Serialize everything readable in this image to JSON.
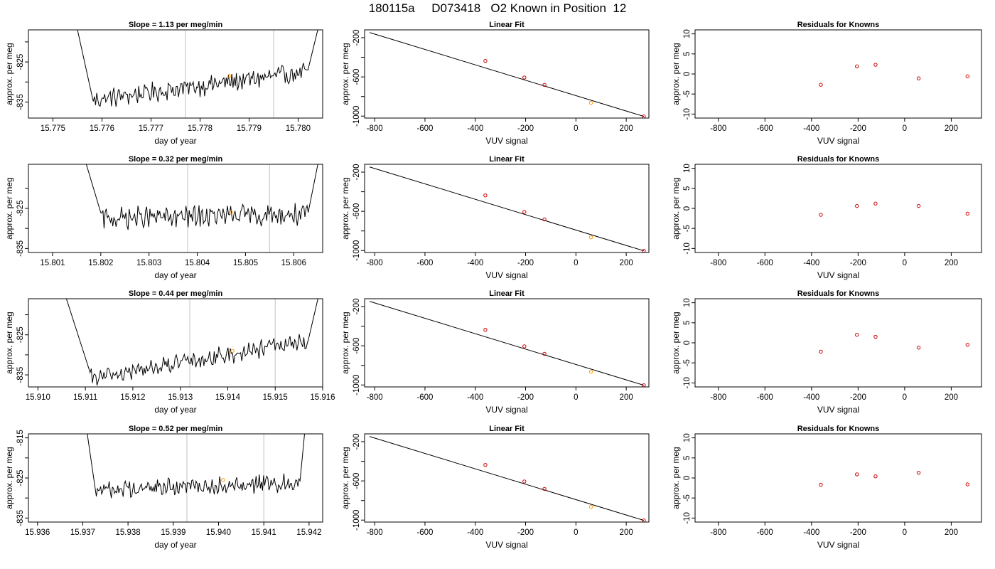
{
  "title": "180115a     D073418   O2 Known in Position  12",
  "colors": {
    "trace": "#000000",
    "vline": "#cccccc",
    "highlight": "#ff9900",
    "residual": "#cc0000",
    "frame": "#000000"
  },
  "chart_data": [
    {
      "type": "line",
      "title": "Slope =  1.13  per meg/min",
      "xlabel": "day of year",
      "ylabel": "approx. per meg",
      "xlim": [
        15.7745,
        15.7805
      ],
      "ylim": [
        -839,
        -817
      ],
      "xticks": [
        15.775,
        15.776,
        15.777,
        15.778,
        15.779,
        15.78
      ],
      "xtick_labels": [
        "15.775",
        "15.776",
        "15.777",
        "15.778",
        "15.779",
        "15.780"
      ],
      "yticks": [
        -835,
        -830,
        -825,
        -820
      ],
      "ytick_labels": [
        "-835",
        "",
        "-825",
        ""
      ],
      "start": 15.7755,
      "end": 15.7804,
      "left_top": -817,
      "right_top": -817,
      "drop_end": 15.7758,
      "rise_start": 15.7802,
      "base_start": -834.5,
      "base_end": -827.5,
      "noise": 2.0,
      "vlines": [
        15.7777,
        15.7795
      ],
      "marker": {
        "x": 15.7786,
        "y": -828.5
      }
    },
    {
      "type": "scatter",
      "title": "Linear Fit",
      "xlabel": "VUV signal",
      "ylabel": "approx. per meg",
      "xlim": [
        -840,
        290
      ],
      "ylim": [
        -1020,
        -120
      ],
      "xticks": [
        -800,
        -600,
        -400,
        -200,
        0,
        200
      ],
      "xtick_labels": [
        "-800",
        "-600",
        "-400",
        "-200",
        "0",
        "200"
      ],
      "yticks": [
        -200,
        -400,
        -600,
        -800,
        -1000
      ],
      "ytick_labels": [
        "-200",
        "",
        "-600",
        "",
        "-1000"
      ],
      "line": {
        "x": [
          -820,
          270
        ],
        "y": [
          -147,
          -1003
        ]
      },
      "points": [
        {
          "x": -360,
          "y": -437
        },
        {
          "x": -205,
          "y": -606
        },
        {
          "x": -125,
          "y": -682
        },
        {
          "x": 60,
          "y": -865
        },
        {
          "x": 270,
          "y": -1003
        }
      ],
      "highlight_index": 3
    },
    {
      "type": "scatter",
      "title": "Residuals for Knowns",
      "xlabel": "VUV signal",
      "ylabel": "approx. per meg",
      "xlim": [
        -900,
        330
      ],
      "ylim": [
        -11,
        11
      ],
      "xticks": [
        -800,
        -600,
        -400,
        -200,
        0,
        200
      ],
      "xtick_labels": [
        "-800",
        "-600",
        "-400",
        "-200",
        "0",
        "200"
      ],
      "yticks": [
        10,
        5,
        0,
        -5,
        -10
      ],
      "ytick_labels": [
        "10",
        "5",
        "0",
        "-5",
        "-10"
      ],
      "points": [
        {
          "x": -360,
          "y": -2.7
        },
        {
          "x": -205,
          "y": 1.9
        },
        {
          "x": -125,
          "y": 2.3
        },
        {
          "x": 60,
          "y": -1.1
        },
        {
          "x": 270,
          "y": -0.6
        }
      ]
    },
    {
      "type": "line",
      "title": "Slope =  0.32  per meg/min",
      "xlabel": "day of year",
      "ylabel": "approx. per meg",
      "xlim": [
        15.8005,
        15.8066
      ],
      "ylim": [
        -836,
        -814
      ],
      "xticks": [
        15.801,
        15.802,
        15.803,
        15.804,
        15.805,
        15.806
      ],
      "xtick_labels": [
        "15.801",
        "15.802",
        "15.803",
        "15.804",
        "15.805",
        "15.806"
      ],
      "yticks": [
        -835,
        -830,
        -825,
        -820
      ],
      "ytick_labels": [
        "-835",
        "",
        "-825",
        ""
      ],
      "start": 15.8017,
      "end": 15.8065,
      "left_top": -814,
      "right_top": -814,
      "drop_end": 15.802,
      "rise_start": 15.8063,
      "base_start": -827.5,
      "base_end": -826.5,
      "noise": 2.2,
      "vlines": [
        15.8038,
        15.8055
      ],
      "marker": {
        "x": 15.8047,
        "y": -826.0
      }
    },
    {
      "type": "scatter",
      "title": "Linear Fit",
      "xlabel": "VUV signal",
      "ylabel": "approx. per meg",
      "xlim": [
        -840,
        290
      ],
      "ylim": [
        -1020,
        -120
      ],
      "xticks": [
        -800,
        -600,
        -400,
        -200,
        0,
        200
      ],
      "xtick_labels": [
        "-800",
        "-600",
        "-400",
        "-200",
        "0",
        "200"
      ],
      "yticks": [
        -200,
        -400,
        -600,
        -800,
        -1000
      ],
      "ytick_labels": [
        "-200",
        "",
        "-600",
        "",
        "-1000"
      ],
      "line": {
        "x": [
          -820,
          270
        ],
        "y": [
          -147,
          -1003
        ]
      },
      "points": [
        {
          "x": -360,
          "y": -437
        },
        {
          "x": -205,
          "y": -606
        },
        {
          "x": -125,
          "y": -682
        },
        {
          "x": 60,
          "y": -865
        },
        {
          "x": 270,
          "y": -1003
        }
      ],
      "highlight_index": 3
    },
    {
      "type": "scatter",
      "title": "Residuals for Knowns",
      "xlabel": "VUV signal",
      "ylabel": "approx. per meg",
      "xlim": [
        -900,
        330
      ],
      "ylim": [
        -11,
        11
      ],
      "xticks": [
        -800,
        -600,
        -400,
        -200,
        0,
        200
      ],
      "xtick_labels": [
        "-800",
        "-600",
        "-400",
        "-200",
        "0",
        "200"
      ],
      "yticks": [
        10,
        5,
        0,
        -5,
        -10
      ],
      "ytick_labels": [
        "10",
        "5",
        "0",
        "-5",
        "-10"
      ],
      "points": [
        {
          "x": -360,
          "y": -1.6
        },
        {
          "x": -205,
          "y": 0.6
        },
        {
          "x": -125,
          "y": 1.2
        },
        {
          "x": 60,
          "y": 0.6
        },
        {
          "x": 270,
          "y": -1.3
        }
      ]
    },
    {
      "type": "line",
      "title": "Slope =  0.44  per meg/min",
      "xlabel": "day of year",
      "ylabel": "approx. per meg",
      "xlim": [
        15.9098,
        15.916
      ],
      "ylim": [
        -838,
        -816
      ],
      "xticks": [
        15.91,
        15.911,
        15.912,
        15.913,
        15.914,
        15.915,
        15.916
      ],
      "xtick_labels": [
        "15.910",
        "15.911",
        "15.912",
        "15.913",
        "15.914",
        "15.915",
        "15.916"
      ],
      "yticks": [
        -835,
        -830,
        -825,
        -820
      ],
      "ytick_labels": [
        "-835",
        "",
        "-825",
        ""
      ],
      "start": 15.9106,
      "end": 15.9159,
      "left_top": -816,
      "right_top": -816,
      "drop_end": 15.9111,
      "rise_start": 15.9157,
      "base_start": -836.0,
      "base_end": -826.5,
      "noise": 1.8,
      "vlines": [
        15.9132,
        15.915
      ],
      "marker": {
        "x": 15.9141,
        "y": -829.0
      }
    },
    {
      "type": "scatter",
      "title": "Linear Fit",
      "xlabel": "VUV signal",
      "ylabel": "approx. per meg",
      "xlim": [
        -840,
        290
      ],
      "ylim": [
        -1020,
        -120
      ],
      "xticks": [
        -800,
        -600,
        -400,
        -200,
        0,
        200
      ],
      "xtick_labels": [
        "-800",
        "-600",
        "-400",
        "-200",
        "0",
        "200"
      ],
      "yticks": [
        -200,
        -400,
        -600,
        -800,
        -1000
      ],
      "ytick_labels": [
        "-200",
        "",
        "-600",
        "",
        "-1000"
      ],
      "line": {
        "x": [
          -820,
          270
        ],
        "y": [
          -147,
          -1003
        ]
      },
      "points": [
        {
          "x": -360,
          "y": -437
        },
        {
          "x": -205,
          "y": -606
        },
        {
          "x": -125,
          "y": -682
        },
        {
          "x": 60,
          "y": -865
        },
        {
          "x": 270,
          "y": -1003
        }
      ],
      "highlight_index": 3
    },
    {
      "type": "scatter",
      "title": "Residuals for Knowns",
      "xlabel": "VUV signal",
      "ylabel": "approx. per meg",
      "xlim": [
        -900,
        330
      ],
      "ylim": [
        -11,
        11
      ],
      "xticks": [
        -800,
        -600,
        -400,
        -200,
        0,
        200
      ],
      "xtick_labels": [
        "-800",
        "-600",
        "-400",
        "-200",
        "0",
        "200"
      ],
      "yticks": [
        10,
        5,
        0,
        -5,
        -10
      ],
      "ytick_labels": [
        "10",
        "5",
        "0",
        "-5",
        "-10"
      ],
      "points": [
        {
          "x": -360,
          "y": -2.2
        },
        {
          "x": -205,
          "y": 2.0
        },
        {
          "x": -125,
          "y": 1.5
        },
        {
          "x": 60,
          "y": -1.2
        },
        {
          "x": 270,
          "y": -0.5
        }
      ]
    },
    {
      "type": "line",
      "title": "Slope =  0.52  per meg/min",
      "xlabel": "day of year",
      "ylabel": "approx. per meg",
      "xlim": [
        15.9358,
        15.9423
      ],
      "ylim": [
        -836,
        -814
      ],
      "xticks": [
        15.936,
        15.937,
        15.938,
        15.939,
        15.94,
        15.941,
        15.942
      ],
      "xtick_labels": [
        "15.936",
        "15.937",
        "15.938",
        "15.939",
        "15.940",
        "15.941",
        "15.942"
      ],
      "yticks": [
        -835,
        -830,
        -825,
        -820,
        -815
      ],
      "ytick_labels": [
        "-835",
        "",
        "-825",
        "",
        "-815"
      ],
      "start": 15.9371,
      "end": 15.9419,
      "left_top": -814,
      "right_top": -814,
      "drop_end": 15.9373,
      "rise_start": 15.9418,
      "base_start": -828.0,
      "base_end": -826.0,
      "noise": 1.8,
      "vlines": [
        15.9393,
        15.941
      ],
      "marker": {
        "x": 15.9401,
        "y": -825.5
      }
    },
    {
      "type": "scatter",
      "title": "Linear Fit",
      "xlabel": "VUV signal",
      "ylabel": "approx. per meg",
      "xlim": [
        -840,
        290
      ],
      "ylim": [
        -1020,
        -120
      ],
      "xticks": [
        -800,
        -600,
        -400,
        -200,
        0,
        200
      ],
      "xtick_labels": [
        "-800",
        "-600",
        "-400",
        "-200",
        "0",
        "200"
      ],
      "yticks": [
        -200,
        -400,
        -600,
        -800,
        -1000
      ],
      "ytick_labels": [
        "-200",
        "",
        "-600",
        "",
        "-1000"
      ],
      "line": {
        "x": [
          -820,
          270
        ],
        "y": [
          -147,
          -1003
        ]
      },
      "points": [
        {
          "x": -360,
          "y": -437
        },
        {
          "x": -205,
          "y": -606
        },
        {
          "x": -125,
          "y": -682
        },
        {
          "x": 60,
          "y": -865
        },
        {
          "x": 270,
          "y": -1003
        }
      ],
      "highlight_index": 3
    },
    {
      "type": "scatter",
      "title": "Residuals for Knowns",
      "xlabel": "VUV signal",
      "ylabel": "approx. per meg",
      "xlim": [
        -900,
        330
      ],
      "ylim": [
        -11,
        11
      ],
      "xticks": [
        -800,
        -600,
        -400,
        -200,
        0,
        200
      ],
      "xtick_labels": [
        "-800",
        "-600",
        "-400",
        "-200",
        "0",
        "200"
      ],
      "yticks": [
        10,
        5,
        0,
        -5,
        -10
      ],
      "ytick_labels": [
        "10",
        "5",
        "0",
        "-5",
        "-10"
      ],
      "points": [
        {
          "x": -360,
          "y": -1.7
        },
        {
          "x": -205,
          "y": 0.9
        },
        {
          "x": -125,
          "y": 0.4
        },
        {
          "x": 60,
          "y": 1.3
        },
        {
          "x": 270,
          "y": -1.6
        }
      ]
    }
  ]
}
